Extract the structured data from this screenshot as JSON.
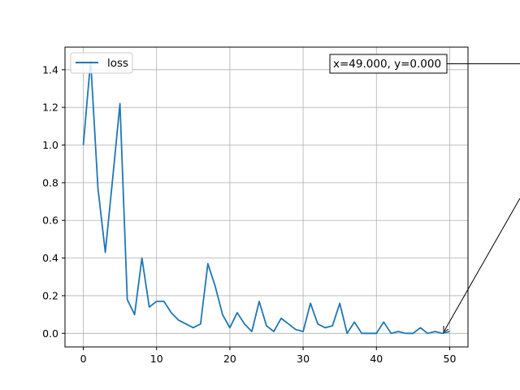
{
  "chart_data": {
    "type": "line",
    "xlim": [
      -2.5,
      52.5
    ],
    "ylim": [
      -0.072,
      1.52
    ],
    "xticks": [
      0,
      10,
      20,
      30,
      40,
      50
    ],
    "yticks": [
      0.0,
      0.2,
      0.4,
      0.6,
      0.8,
      1.0,
      1.2,
      1.4
    ],
    "xtick_labels": [
      "0",
      "10",
      "20",
      "30",
      "40",
      "50"
    ],
    "ytick_labels": [
      "0.0",
      "0.2",
      "0.4",
      "0.6",
      "0.8",
      "1.0",
      "1.2",
      "1.4"
    ],
    "grid": true,
    "legend": {
      "placement": "top-left",
      "entries": [
        "loss"
      ]
    },
    "series": [
      {
        "name": "loss",
        "color": "#1f77b4",
        "x": [
          0,
          1,
          2,
          3,
          4,
          5,
          6,
          7,
          8,
          9,
          10,
          11,
          12,
          13,
          14,
          15,
          16,
          17,
          18,
          19,
          20,
          21,
          22,
          23,
          24,
          25,
          26,
          27,
          28,
          29,
          30,
          31,
          32,
          33,
          34,
          35,
          36,
          37,
          38,
          39,
          40,
          41,
          42,
          43,
          44,
          45,
          46,
          47,
          48,
          49,
          50
        ],
        "y": [
          1.0,
          1.45,
          0.77,
          0.43,
          0.82,
          1.22,
          0.18,
          0.1,
          0.4,
          0.14,
          0.17,
          0.17,
          0.11,
          0.07,
          0.05,
          0.03,
          0.05,
          0.37,
          0.25,
          0.1,
          0.03,
          0.11,
          0.05,
          0.01,
          0.17,
          0.04,
          0.01,
          0.08,
          0.05,
          0.02,
          0.01,
          0.16,
          0.05,
          0.03,
          0.04,
          0.16,
          0.0,
          0.06,
          0.0,
          0.0,
          0.0,
          0.06,
          0.0,
          0.01,
          0.0,
          0.0,
          0.03,
          0.0,
          0.01,
          0.0,
          0.01
        ]
      }
    ],
    "annotation": {
      "text": "x=49.000, y=0.000",
      "point": [
        49,
        0.0
      ]
    }
  }
}
